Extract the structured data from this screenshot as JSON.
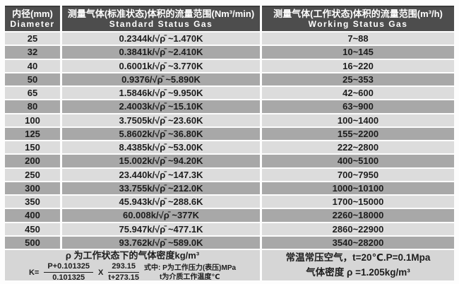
{
  "table": {
    "header": {
      "col1_cn": "内径(mm)",
      "col1_en": "Diameter",
      "col2_cn": "测量气体(标准状态)体积的流量范围(Nm³/min)",
      "col2_en": "Standard Status Gas",
      "col3_cn": "测量气体(工作状态)体积的流量范围(m³/h)",
      "col3_en": "Working Status Gas"
    },
    "rows": [
      {
        "d": "25",
        "std": "0.2344k/√ρ̄ ~1.470K",
        "work": "7~88"
      },
      {
        "d": "32",
        "std": "0.3841k/√ρ̄ ~2.410K",
        "work": "10~145"
      },
      {
        "d": "40",
        "std": "0.6001k/√ρ̄ ~3.770K",
        "work": "16~220"
      },
      {
        "d": "50",
        "std": "0.9376/√ρ̄ ~5.890K",
        "work": "25~353"
      },
      {
        "d": "65",
        "std": "1.5846k/√ρ̄ ~9.950K",
        "work": "42~600"
      },
      {
        "d": "80",
        "std": "2.4003k/√ρ̄ ~15.10K",
        "work": "63~900"
      },
      {
        "d": "100",
        "std": "3.7505k/√ρ̄ ~23.60K",
        "work": "100~1400"
      },
      {
        "d": "125",
        "std": "5.8602k/√ρ̄ ~36.80K",
        "work": "155~2200"
      },
      {
        "d": "150",
        "std": "8.4385k/√ρ̄ ~53.00K",
        "work": "222~2800"
      },
      {
        "d": "200",
        "std": "15.002k/√ρ̄ ~94.20K",
        "work": "400~5100"
      },
      {
        "d": "250",
        "std": "23.440k/√ρ̄ ~147.3K",
        "work": "700~7950"
      },
      {
        "d": "300",
        "std": "33.755k/√ρ̄ ~212.0K",
        "work": "1000~10100"
      },
      {
        "d": "350",
        "std": "45.943k/√ρ̄ ~288.6K",
        "work": "1700~15000"
      },
      {
        "d": "400",
        "std": "60.008k/√ρ̄ ~377K",
        "work": "2260~18000"
      },
      {
        "d": "450",
        "std": "75.947k/√ρ̄ ~477.1K",
        "work": "2860~22900"
      },
      {
        "d": "500",
        "std": "93.762k/√ρ̄ ~589.0K",
        "work": "3540~28200"
      }
    ]
  },
  "footer": {
    "left": {
      "density_note": "ρ 为工作状态下的气体密度kg/m³",
      "k_label": "K=",
      "frac1_num": "P+0.101325",
      "frac1_den": "0.101325",
      "multiply": "X",
      "frac2_num": "293.15",
      "frac2_den": "t+273.15",
      "where_line1": "式中: P为工作压力(表压)MPa",
      "where_line2": "t为介质工作温度℃"
    },
    "right": {
      "line1": "常温常压空气，t=20℃.P=0.1Mpa",
      "line2": "气体密度 ρ =1.205kg/m³"
    }
  },
  "colors": {
    "header_bg": "#4d4d4d",
    "row_light": "#dcdcdc",
    "row_dark": "#a8a8a8",
    "footer_bg": "#d6d6d6",
    "text": "#1d1d1d"
  }
}
